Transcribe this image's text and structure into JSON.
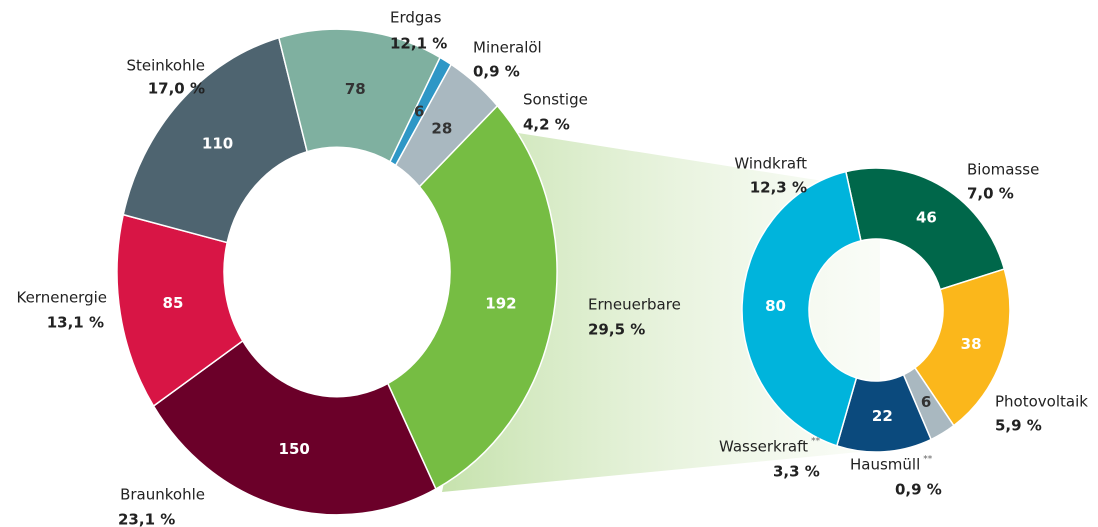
{
  "chart_data": [
    {
      "type": "donut",
      "categories": [
        "Erneuerbare",
        "Braunkohle",
        "Kernenergie",
        "Steinkohle",
        "Erdgas",
        "Mineralöl",
        "Sonstige"
      ],
      "values": [
        192,
        150,
        85,
        110,
        78,
        6,
        28
      ],
      "percent_labels": [
        "29,5 %",
        "23,1 %",
        "13,1 %",
        "17,0 %",
        "12,1 %",
        "0,9 %",
        "4,2 %"
      ],
      "colors": [
        "#76bd43",
        "#6b0029",
        "#d81545",
        "#4e6470",
        "#7fb0a0",
        "#2e97c6",
        "#a9b8c0"
      ]
    },
    {
      "type": "donut",
      "categories": [
        "Biomasse",
        "Photovoltaik",
        "Hausmüll",
        "Wasserkraft",
        "Windkraft"
      ],
      "values": [
        46,
        38,
        6,
        22,
        80
      ],
      "percent_labels": [
        "7,0 %",
        "5,9 %",
        "0,9 %",
        "3,3 %",
        "12,3 %"
      ],
      "colors": [
        "#00674a",
        "#fbb71b",
        "#a9b8c0",
        "#0b4a7d",
        "#00b4dc"
      ],
      "footnotes": [
        {
          "index": 2,
          "mark": "**"
        },
        {
          "index": 3,
          "mark": "**"
        }
      ]
    }
  ]
}
